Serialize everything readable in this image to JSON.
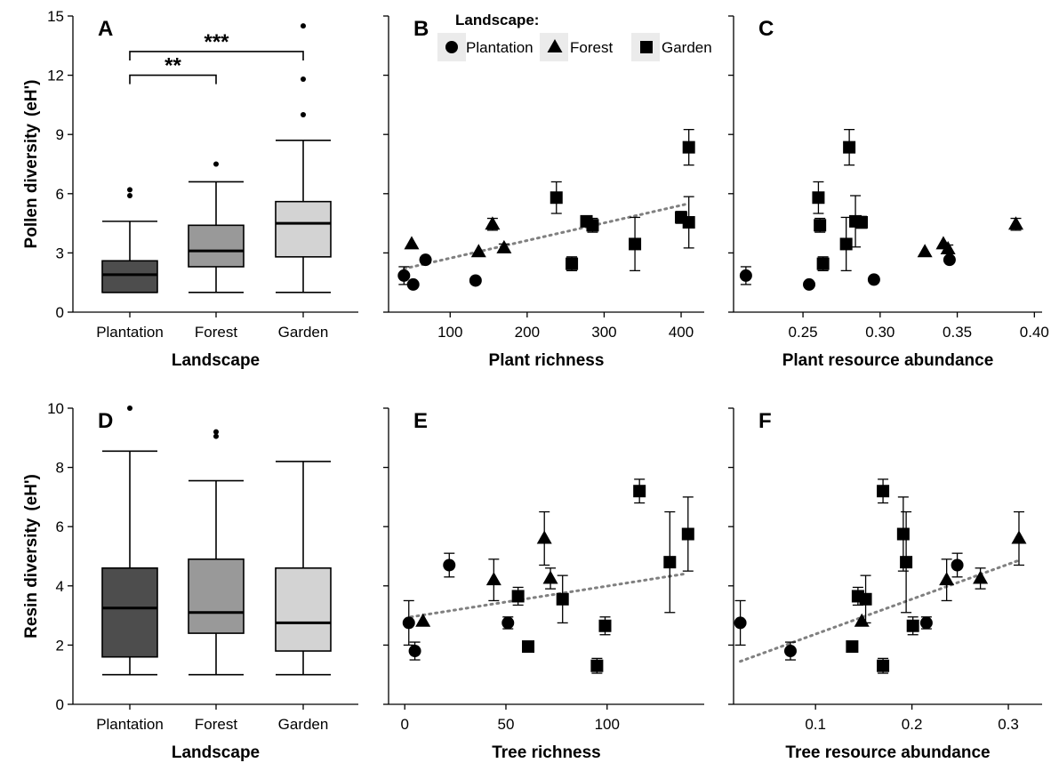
{
  "chart_data": [
    {
      "panel": "A",
      "type": "box",
      "xlabel": "Landscape",
      "ylabel": "Pollen diversity",
      "ylabel_unit": "(eH')",
      "ylim": [
        0,
        15
      ],
      "yticks": [
        0,
        3,
        6,
        9,
        12,
        15
      ],
      "categories": [
        "Plantation",
        "Forest",
        "Garden"
      ],
      "boxes": [
        {
          "category": "Plantation",
          "color": "#4d4d4d",
          "whisker_low": 1.0,
          "q1": 1.0,
          "median": 1.9,
          "q3": 2.6,
          "whisker_high": 4.6,
          "outliers": [
            5.9,
            6.2
          ]
        },
        {
          "category": "Forest",
          "color": "#999999",
          "whisker_low": 1.0,
          "q1": 2.3,
          "median": 3.1,
          "q3": 4.4,
          "whisker_high": 6.6,
          "outliers": [
            7.5
          ]
        },
        {
          "category": "Garden",
          "color": "#d3d3d3",
          "whisker_low": 1.0,
          "q1": 2.8,
          "median": 4.5,
          "q3": 5.6,
          "whisker_high": 8.7,
          "outliers": [
            10.0,
            11.8,
            14.5
          ]
        }
      ],
      "significance": [
        {
          "from": "Plantation",
          "to": "Forest",
          "label": "**",
          "y": 12.0
        },
        {
          "from": "Plantation",
          "to": "Garden",
          "label": "***",
          "y": 13.2
        }
      ]
    },
    {
      "panel": "B",
      "type": "scatter",
      "xlabel": "Plant richness",
      "ylabel": "",
      "xlim": [
        20,
        430
      ],
      "xticks": [
        100,
        200,
        300,
        400
      ],
      "ylim": [
        0,
        15
      ],
      "yticks": [
        0,
        3,
        6,
        9,
        12,
        15
      ],
      "trend": {
        "x": [
          40,
          410
        ],
        "y": [
          2.2,
          5.5
        ]
      },
      "points": [
        {
          "x": 40,
          "y": 1.85,
          "err": 0.45,
          "group": "Plantation"
        },
        {
          "x": 52,
          "y": 1.4,
          "err": 0,
          "group": "Plantation"
        },
        {
          "x": 68,
          "y": 2.65,
          "err": 0,
          "group": "Plantation"
        },
        {
          "x": 133,
          "y": 1.6,
          "err": 0,
          "group": "Plantation"
        },
        {
          "x": 50,
          "y": 3.45,
          "err": 0,
          "group": "Forest"
        },
        {
          "x": 137,
          "y": 3.05,
          "err": 0,
          "group": "Forest"
        },
        {
          "x": 155,
          "y": 4.45,
          "err": 0.3,
          "group": "Forest"
        },
        {
          "x": 170,
          "y": 3.25,
          "err": 0.2,
          "group": "Forest"
        },
        {
          "x": 238,
          "y": 5.8,
          "err": 0.8,
          "group": "Garden"
        },
        {
          "x": 258,
          "y": 2.45,
          "err": 0.35,
          "group": "Garden"
        },
        {
          "x": 277,
          "y": 4.6,
          "err": 0,
          "group": "Garden"
        },
        {
          "x": 285,
          "y": 4.4,
          "err": 0.35,
          "group": "Garden"
        },
        {
          "x": 340,
          "y": 3.45,
          "err": 1.35,
          "group": "Garden"
        },
        {
          "x": 400,
          "y": 4.8,
          "err": 0.3,
          "group": "Garden"
        },
        {
          "x": 410,
          "y": 8.35,
          "err": 0.9,
          "group": "Garden"
        },
        {
          "x": 410,
          "y": 4.55,
          "err": 1.3,
          "group": "Garden"
        }
      ]
    },
    {
      "panel": "C",
      "type": "scatter",
      "xlabel": "Plant resource abundance",
      "ylabel": "",
      "xlim": [
        0.205,
        0.405
      ],
      "xticks": [
        0.25,
        0.3,
        0.35,
        0.4
      ],
      "ylim": [
        0,
        15
      ],
      "yticks": [
        0,
        3,
        6,
        9,
        12,
        15
      ],
      "points": [
        {
          "x": 0.213,
          "y": 1.85,
          "err": 0.45,
          "group": "Plantation"
        },
        {
          "x": 0.254,
          "y": 1.4,
          "err": 0,
          "group": "Plantation"
        },
        {
          "x": 0.296,
          "y": 1.65,
          "err": 0,
          "group": "Plantation"
        },
        {
          "x": 0.345,
          "y": 2.65,
          "err": 0,
          "group": "Plantation"
        },
        {
          "x": 0.329,
          "y": 3.05,
          "err": 0,
          "group": "Forest"
        },
        {
          "x": 0.341,
          "y": 3.45,
          "err": 0,
          "group": "Forest"
        },
        {
          "x": 0.344,
          "y": 3.2,
          "err": 0.2,
          "group": "Forest"
        },
        {
          "x": 0.388,
          "y": 4.45,
          "err": 0.3,
          "group": "Forest"
        },
        {
          "x": 0.26,
          "y": 5.8,
          "err": 0.8,
          "group": "Garden"
        },
        {
          "x": 0.261,
          "y": 4.4,
          "err": 0.35,
          "group": "Garden"
        },
        {
          "x": 0.263,
          "y": 2.45,
          "err": 0.35,
          "group": "Garden"
        },
        {
          "x": 0.278,
          "y": 3.45,
          "err": 1.35,
          "group": "Garden"
        },
        {
          "x": 0.28,
          "y": 8.35,
          "err": 0.9,
          "group": "Garden"
        },
        {
          "x": 0.284,
          "y": 4.6,
          "err": 1.3,
          "group": "Garden"
        },
        {
          "x": 0.288,
          "y": 4.55,
          "err": 0.3,
          "group": "Garden"
        }
      ]
    },
    {
      "panel": "D",
      "type": "box",
      "xlabel": "Landscape",
      "ylabel": "Resin diversity",
      "ylabel_unit": "(eH')",
      "ylim": [
        0,
        10
      ],
      "yticks": [
        0,
        2,
        4,
        6,
        8,
        10
      ],
      "categories": [
        "Plantation",
        "Forest",
        "Garden"
      ],
      "boxes": [
        {
          "category": "Plantation",
          "color": "#4d4d4d",
          "whisker_low": 1.0,
          "q1": 1.6,
          "median": 3.25,
          "q3": 4.6,
          "whisker_high": 8.55,
          "outliers": [
            10.0
          ]
        },
        {
          "category": "Forest",
          "color": "#999999",
          "whisker_low": 1.0,
          "q1": 2.4,
          "median": 3.1,
          "q3": 4.9,
          "whisker_high": 7.55,
          "outliers": [
            9.05,
            9.2
          ]
        },
        {
          "category": "Garden",
          "color": "#d3d3d3",
          "whisker_low": 1.0,
          "q1": 1.8,
          "median": 2.75,
          "q3": 4.6,
          "whisker_high": 8.2,
          "outliers": []
        }
      ]
    },
    {
      "panel": "E",
      "type": "scatter",
      "xlabel": "Tree richness",
      "ylabel": "",
      "xlim": [
        -8,
        148
      ],
      "xticks": [
        0,
        50,
        100
      ],
      "ylim": [
        0,
        10
      ],
      "yticks": [
        0,
        2,
        4,
        6,
        8,
        10
      ],
      "trend": {
        "x": [
          3,
          138
        ],
        "y": [
          2.95,
          4.4
        ]
      },
      "points": [
        {
          "x": 2,
          "y": 2.75,
          "err": 0.75,
          "group": "Plantation"
        },
        {
          "x": 5,
          "y": 1.8,
          "err": 0.3,
          "group": "Plantation"
        },
        {
          "x": 22,
          "y": 4.7,
          "err": 0.4,
          "group": "Plantation"
        },
        {
          "x": 51,
          "y": 2.75,
          "err": 0.2,
          "group": "Plantation"
        },
        {
          "x": 9,
          "y": 2.8,
          "err": 0,
          "group": "Forest"
        },
        {
          "x": 44,
          "y": 4.2,
          "err": 0.7,
          "group": "Forest"
        },
        {
          "x": 69,
          "y": 5.6,
          "err": 0.9,
          "group": "Forest"
        },
        {
          "x": 72,
          "y": 4.25,
          "err": 0.35,
          "group": "Forest"
        },
        {
          "x": 56,
          "y": 3.65,
          "err": 0.3,
          "group": "Garden"
        },
        {
          "x": 61,
          "y": 1.95,
          "err": 0,
          "group": "Garden"
        },
        {
          "x": 78,
          "y": 3.55,
          "err": 0.8,
          "group": "Garden"
        },
        {
          "x": 95,
          "y": 1.3,
          "err": 0.25,
          "group": "Garden"
        },
        {
          "x": 99,
          "y": 2.65,
          "err": 0.3,
          "group": "Garden"
        },
        {
          "x": 116,
          "y": 7.2,
          "err": 0.4,
          "group": "Garden"
        },
        {
          "x": 131,
          "y": 4.8,
          "err": 1.7,
          "group": "Garden"
        },
        {
          "x": 140,
          "y": 5.75,
          "err": 1.25,
          "group": "Garden"
        }
      ]
    },
    {
      "panel": "F",
      "type": "scatter",
      "xlabel": "Tree resource abundance",
      "ylabel": "",
      "xlim": [
        0.015,
        0.335
      ],
      "xticks": [
        0.1,
        0.2,
        0.3
      ],
      "ylim": [
        0,
        10
      ],
      "yticks": [
        0,
        2,
        4,
        6,
        8,
        10
      ],
      "trend": {
        "x": [
          0.022,
          0.31
        ],
        "y": [
          1.45,
          4.85
        ]
      },
      "points": [
        {
          "x": 0.022,
          "y": 2.75,
          "err": 0.75,
          "group": "Plantation"
        },
        {
          "x": 0.074,
          "y": 1.8,
          "err": 0.3,
          "group": "Plantation"
        },
        {
          "x": 0.215,
          "y": 2.75,
          "err": 0.2,
          "group": "Plantation"
        },
        {
          "x": 0.247,
          "y": 4.7,
          "err": 0.4,
          "group": "Plantation"
        },
        {
          "x": 0.148,
          "y": 2.8,
          "err": 0,
          "group": "Forest"
        },
        {
          "x": 0.236,
          "y": 4.2,
          "err": 0.7,
          "group": "Forest"
        },
        {
          "x": 0.271,
          "y": 4.25,
          "err": 0.35,
          "group": "Forest"
        },
        {
          "x": 0.311,
          "y": 5.6,
          "err": 0.9,
          "group": "Forest"
        },
        {
          "x": 0.138,
          "y": 1.95,
          "err": 0,
          "group": "Garden"
        },
        {
          "x": 0.144,
          "y": 3.65,
          "err": 0.3,
          "group": "Garden"
        },
        {
          "x": 0.152,
          "y": 3.55,
          "err": 0.8,
          "group": "Garden"
        },
        {
          "x": 0.17,
          "y": 7.2,
          "err": 0.4,
          "group": "Garden"
        },
        {
          "x": 0.17,
          "y": 1.3,
          "err": 0.25,
          "group": "Garden"
        },
        {
          "x": 0.191,
          "y": 5.75,
          "err": 1.25,
          "group": "Garden"
        },
        {
          "x": 0.194,
          "y": 4.8,
          "err": 1.7,
          "group": "Garden"
        },
        {
          "x": 0.201,
          "y": 2.65,
          "err": 0.3,
          "group": "Garden"
        }
      ]
    }
  ],
  "legend": {
    "title": "Landscape:",
    "placement": "top, inside panel B",
    "items": [
      {
        "label": "Plantation",
        "marker": "circle"
      },
      {
        "label": "Forest",
        "marker": "triangle"
      },
      {
        "label": "Garden",
        "marker": "square"
      }
    ]
  }
}
